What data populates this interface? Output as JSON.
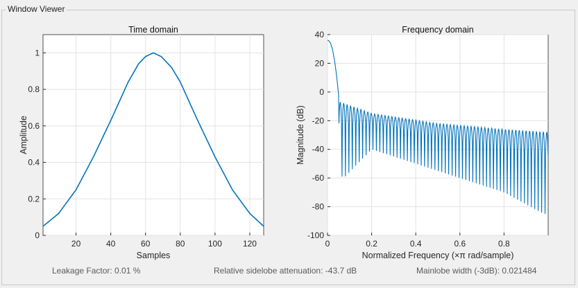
{
  "window": {
    "title": "Window Viewer"
  },
  "time_domain": {
    "title": "Time domain",
    "xlabel": "Samples",
    "ylabel": "Amplitude",
    "xticks": [
      "20",
      "40",
      "60",
      "80",
      "100",
      "120"
    ],
    "yticks": [
      "0",
      "0.2",
      "0.4",
      "0.6",
      "0.8",
      "1"
    ]
  },
  "freq_domain": {
    "title": "Frequency domain",
    "xlabel": "Normalized Frequency  (×π rad/sample)",
    "ylabel": "Magnitude (dB)",
    "xticks": [
      "0",
      "0.2",
      "0.4",
      "0.6",
      "0.8"
    ],
    "yticks": [
      "40",
      "20",
      "0",
      "-20",
      "-40",
      "-60",
      "-80",
      "-100"
    ]
  },
  "status": {
    "leakage": "Leakage Factor: 0.01 %",
    "sidelobe": "Relative sidelobe attenuation: -43.7 dB",
    "mainlobe": "Mainlobe width (-3dB): 0.021484"
  },
  "chart_data": [
    {
      "type": "line",
      "title": "Time domain",
      "xlabel": "Samples",
      "ylabel": "Amplitude",
      "xlim": [
        1,
        128
      ],
      "ylim": [
        0,
        1.1
      ],
      "series": [
        {
          "name": "window",
          "color": "#0072bd",
          "x": [
            1,
            10,
            20,
            30,
            40,
            50,
            56,
            60,
            64.5,
            69,
            75,
            80,
            90,
            100,
            110,
            120,
            128
          ],
          "values": [
            0.05,
            0.12,
            0.25,
            0.43,
            0.63,
            0.84,
            0.94,
            0.98,
            1.0,
            0.98,
            0.92,
            0.84,
            0.63,
            0.43,
            0.25,
            0.12,
            0.05
          ]
        }
      ]
    },
    {
      "type": "line",
      "title": "Frequency domain",
      "xlabel": "Normalized Frequency (×π rad/sample)",
      "ylabel": "Magnitude (dB)",
      "xlim": [
        0,
        1
      ],
      "ylim": [
        -100,
        40
      ],
      "series": [
        {
          "name": "magnitude",
          "color": "#0072bd",
          "mainlobe_peak_db": 36,
          "first_null_x": 0.05,
          "sidelobe_envelope": {
            "x": [
              0.06,
              0.2,
              0.5,
              0.8,
              1.0
            ],
            "values": [
              -7,
              -15,
              -22,
              -26,
              -28
            ]
          },
          "null_depth": {
            "x": [
              0.08,
              0.2,
              0.5,
              0.8,
              0.98
            ],
            "values": [
              -59,
              -40,
              -55,
              -70,
              -85
            ]
          },
          "lobe_spacing": 0.0156
        }
      ]
    }
  ]
}
